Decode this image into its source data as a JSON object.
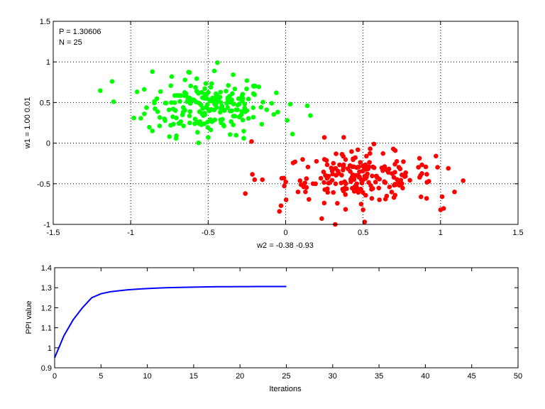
{
  "chart_data": [
    {
      "type": "scatter",
      "xlabel": "w2 = -0.38  -0.93",
      "ylabel": "w1 = 1.00  0.01",
      "xlim": [
        -1.5,
        1.5
      ],
      "ylim": [
        -1,
        1.5
      ],
      "xticks": [
        -1.5,
        -1,
        -0.5,
        0,
        0.5,
        1,
        1.5
      ],
      "yticks": [
        -1,
        -0.5,
        0,
        0.5,
        1,
        1.5
      ],
      "xtick_labels": [
        "-1.5",
        "-1",
        "-0.5",
        "0",
        "0.5",
        "1",
        "1.5"
      ],
      "ytick_labels": [
        "-1",
        "-0.5",
        "0",
        "0.5",
        "1",
        "1.5"
      ],
      "grid": true,
      "annotations": [
        "P = 1.30606",
        "N = 25"
      ],
      "series": [
        {
          "color": "#00ff00",
          "center": [
            -0.5,
            0.45
          ],
          "spread": [
            0.2,
            0.17
          ],
          "count": 200,
          "points_sample": [
            [
              -1.12,
              0.76
            ],
            [
              -1.11,
              0.51
            ],
            [
              -0.98,
              0.31
            ],
            [
              -0.86,
              0.88
            ],
            [
              -0.62,
              0.87
            ],
            [
              -0.44,
              0.99
            ],
            [
              -0.46,
              0.89
            ],
            [
              -0.25,
              0.77
            ],
            [
              -0.09,
              0.49
            ],
            [
              0.03,
              0.48
            ],
            [
              0.14,
              0.46
            ],
            [
              0.16,
              0.34
            ],
            [
              0.01,
              0.28
            ],
            [
              -0.06,
              0.62
            ],
            [
              -0.5,
              0.07
            ],
            [
              -0.75,
              0.08
            ],
            [
              -0.86,
              0.15
            ],
            [
              -0.27,
              0.06
            ]
          ]
        },
        {
          "color": "#ff0000",
          "center": [
            0.48,
            -0.42
          ],
          "spread": [
            0.24,
            0.15
          ],
          "count": 200,
          "points_sample": [
            [
              -0.22,
              0.02
            ],
            [
              -0.2,
              -0.45
            ],
            [
              -0.15,
              -0.45
            ],
            [
              0.25,
              0.07
            ],
            [
              0.57,
              -0.01
            ],
            [
              1.05,
              -0.31
            ],
            [
              1.09,
              -0.6
            ],
            [
              1.01,
              -0.66
            ],
            [
              1.0,
              -0.82
            ],
            [
              0.91,
              -0.68
            ],
            [
              0.32,
              -1.0
            ],
            [
              0.51,
              -0.97
            ],
            [
              0.5,
              -0.82
            ],
            [
              -0.03,
              -0.77
            ],
            [
              -0.04,
              -0.84
            ],
            [
              0.08,
              -0.6
            ],
            [
              -0.26,
              -0.62
            ]
          ]
        }
      ]
    },
    {
      "type": "line",
      "xlabel": "Iterations",
      "ylabel": "PPI value",
      "xlim": [
        0,
        50
      ],
      "ylim": [
        0.9,
        1.4
      ],
      "xticks": [
        0,
        5,
        10,
        15,
        20,
        25,
        30,
        35,
        40,
        45,
        50
      ],
      "yticks": [
        0.9,
        1,
        1.1,
        1.2,
        1.3,
        1.4
      ],
      "xtick_labels": [
        "0",
        "5",
        "10",
        "15",
        "20",
        "25",
        "30",
        "35",
        "40",
        "45",
        "50"
      ],
      "ytick_labels": [
        "0.9",
        "1",
        "1.1",
        "1.2",
        "1.3",
        "1.4"
      ],
      "grid": false,
      "series": [
        {
          "color": "#0000ff",
          "x": [
            0,
            1,
            2,
            3,
            4,
            5,
            6,
            7,
            8,
            9,
            10,
            11,
            12,
            13,
            14,
            15,
            16,
            17,
            18,
            19,
            20,
            21,
            22,
            23,
            24,
            25
          ],
          "y": [
            0.95,
            1.06,
            1.14,
            1.2,
            1.25,
            1.27,
            1.28,
            1.285,
            1.29,
            1.293,
            1.296,
            1.298,
            1.3,
            1.301,
            1.302,
            1.303,
            1.304,
            1.3045,
            1.305,
            1.3053,
            1.3055,
            1.3057,
            1.3058,
            1.3059,
            1.306,
            1.30606
          ]
        }
      ]
    }
  ]
}
